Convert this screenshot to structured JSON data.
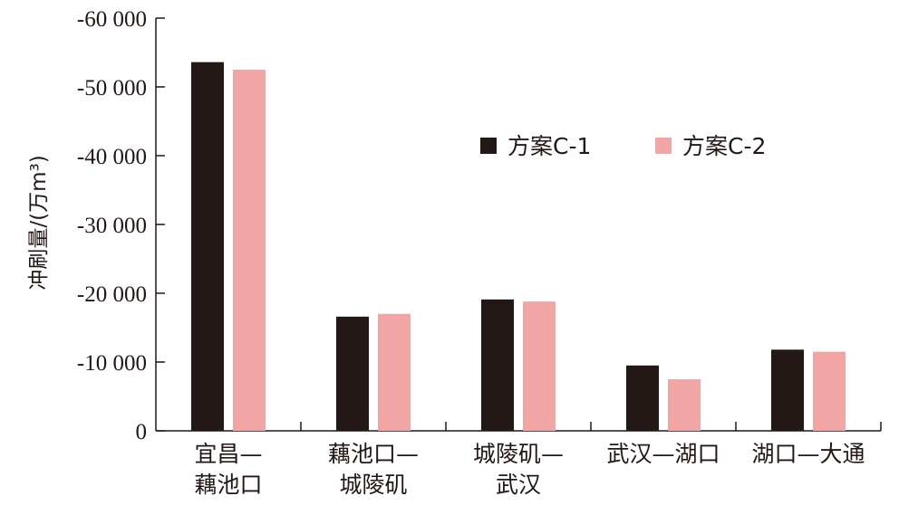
{
  "chart_data": {
    "type": "bar",
    "title": "",
    "xlabel": "",
    "ylabel": "冲刷量/(万m³)",
    "ylim": [
      0,
      -60000
    ],
    "y_ticks": [
      0,
      -10000,
      -20000,
      -30000,
      -40000,
      -50000,
      -60000
    ],
    "y_tick_labels": [
      "0",
      "-10 000",
      "-20 000",
      "-30 000",
      "-40 000",
      "-50 000",
      "-60 000"
    ],
    "categories": [
      [
        "宜昌—",
        "藕池口"
      ],
      [
        "藕池口—",
        "城陵矶"
      ],
      [
        "城陵矶—",
        "武汉"
      ],
      [
        "武汉—湖口"
      ],
      [
        "湖口—大通"
      ]
    ],
    "series": [
      {
        "name": "方案C-1",
        "color": "#231815",
        "values": [
          -53600,
          -16600,
          -19100,
          -9500,
          -11800
        ]
      },
      {
        "name": "方案C-2",
        "color": "#f2a5a5",
        "values": [
          -52500,
          -17000,
          -18800,
          -7500,
          -11500
        ]
      }
    ],
    "legend": "top-right",
    "grid": false
  }
}
